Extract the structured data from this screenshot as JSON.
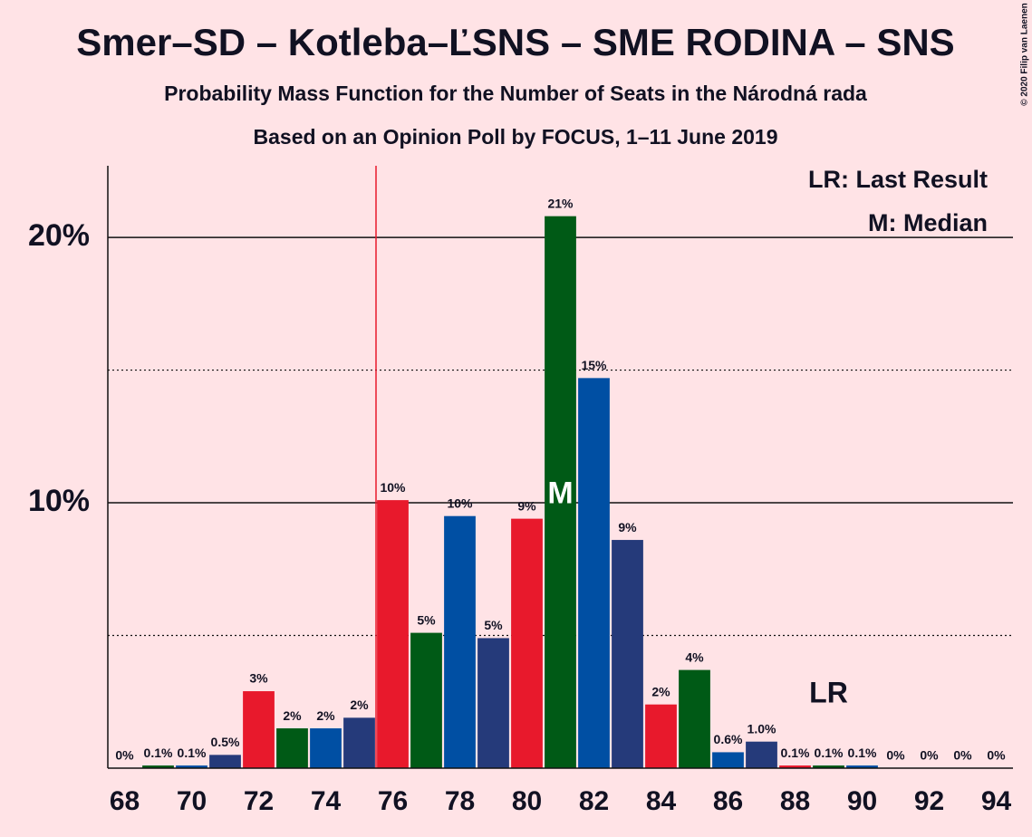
{
  "chart_data": {
    "type": "bar",
    "title": "Smer–SD – Kotleba–ĽSNS – SME RODINA – SNS",
    "subtitle": "Probability Mass Function for the Number of Seats in the Národná rada",
    "subtitle2": "Based on an Opinion Poll by FOCUS, 1–11 June 2019",
    "copyright": "© 2020 Filip van Laenen",
    "x": [
      68,
      69,
      70,
      71,
      72,
      73,
      74,
      75,
      76,
      77,
      78,
      79,
      80,
      81,
      82,
      83,
      84,
      85,
      86,
      87,
      88,
      89,
      90,
      91,
      92,
      93,
      94
    ],
    "values": [
      0,
      0.1,
      0.1,
      0.5,
      2.9,
      1.5,
      1.5,
      1.9,
      10.1,
      5.1,
      9.5,
      4.9,
      9.4,
      20.8,
      14.7,
      8.6,
      2.4,
      3.7,
      0.6,
      1.0,
      0.1,
      0.1,
      0.1,
      0,
      0,
      0,
      0
    ],
    "value_labels": [
      "0%",
      "0.1%",
      "0.1%",
      "0.5%",
      "3%",
      "2%",
      "2%",
      "2%",
      "10%",
      "5%",
      "10%",
      "5%",
      "9%",
      "21%",
      "15%",
      "9%",
      "2%",
      "4%",
      "0.6%",
      "1.0%",
      "0.1%",
      "0.1%",
      "0.1%",
      "0%",
      "0%",
      "0%",
      "0%"
    ],
    "colors": [
      "#e8192c",
      "#005a16",
      "#004fa3",
      "#253a7a"
    ],
    "xlim": [
      67.5,
      94.5
    ],
    "xticks": [
      68,
      70,
      72,
      74,
      76,
      78,
      80,
      82,
      84,
      86,
      88,
      90,
      92,
      94
    ],
    "ylim": [
      0,
      22.7
    ],
    "yticks": [
      {
        "value": 10,
        "label": "10%"
      },
      {
        "value": 20,
        "label": "20%"
      }
    ],
    "minor_yticks": [
      5,
      15
    ],
    "majority": 76,
    "median": 81,
    "median_label": "M",
    "last_result": 89,
    "last_result_label": "LR",
    "legend": [
      "LR: Last Result",
      "M: Median"
    ]
  }
}
